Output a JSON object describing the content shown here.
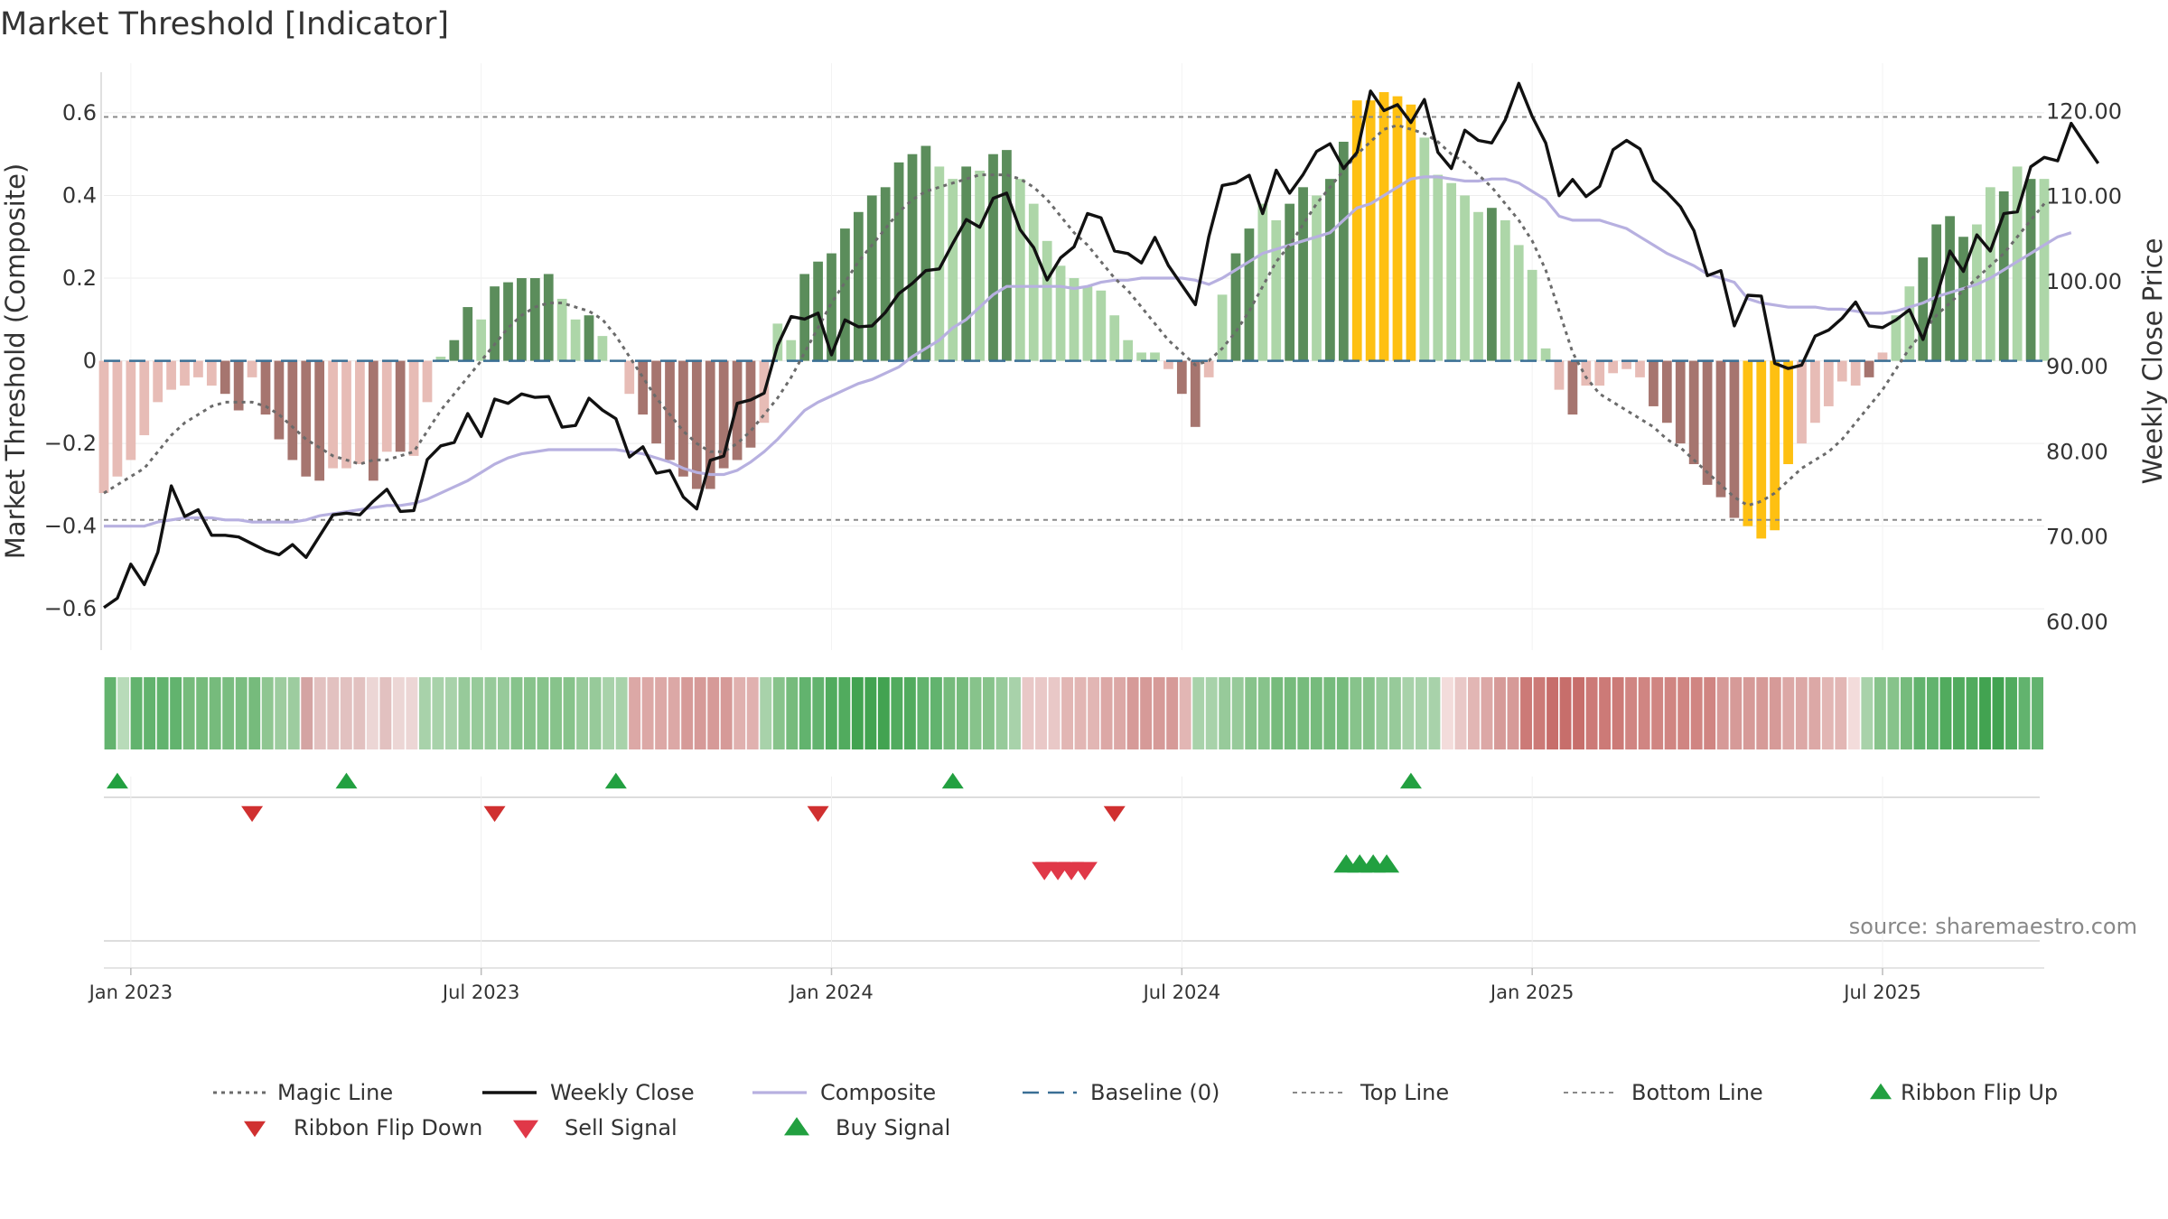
{
  "chart_data": {
    "type": "bar",
    "title": "Market Threshold [Indicator]",
    "source_text": "source: sharemaestro.com",
    "y_left": {
      "label": "Market Threshold (Composite)",
      "range": [
        -0.7,
        0.72
      ],
      "ticks": [
        0.6,
        0.4,
        0.2,
        0,
        -0.2,
        -0.4,
        -0.6
      ],
      "tick_labels": [
        "0.6",
        "0.4",
        "0.2",
        "0",
        "−0.2",
        "−0.4",
        "−0.6"
      ]
    },
    "y_right": {
      "label": "Weekly Close Price",
      "range": [
        56.7,
        125.67
      ],
      "ticks": [
        60,
        70,
        80,
        90,
        100,
        110,
        120
      ],
      "tick_labels": [
        "60.00",
        "70.00",
        "80.00",
        "90.00",
        "100.00",
        "110.00",
        "120.00"
      ]
    },
    "x_ticks": [
      {
        "week": 2,
        "label": "Jan 2023"
      },
      {
        "week": 28,
        "label": "Jul 2023"
      },
      {
        "week": 54,
        "label": "Jan 2024"
      },
      {
        "week": 80,
        "label": "Jul 2024"
      },
      {
        "week": 106,
        "label": "Jan 2025"
      },
      {
        "week": 132,
        "label": "Jul 2025"
      }
    ],
    "top_line": 0.59,
    "bottom_line": -0.385,
    "baseline": 0,
    "composite_bars": [
      -0.32,
      -0.28,
      -0.24,
      -0.18,
      -0.1,
      -0.07,
      -0.06,
      -0.04,
      -0.06,
      -0.08,
      -0.12,
      -0.04,
      -0.13,
      -0.19,
      -0.24,
      -0.28,
      -0.29,
      -0.26,
      -0.26,
      -0.25,
      -0.29,
      -0.22,
      -0.22,
      -0.23,
      -0.1,
      0.01,
      0.05,
      0.13,
      0.1,
      0.18,
      0.19,
      0.2,
      0.2,
      0.21,
      0.15,
      0.1,
      0.11,
      0.06,
      0,
      -0.08,
      -0.13,
      -0.2,
      -0.24,
      -0.28,
      -0.31,
      -0.31,
      -0.26,
      -0.24,
      -0.21,
      -0.15,
      0.09,
      0.05,
      0.21,
      0.24,
      0.26,
      0.32,
      0.36,
      0.4,
      0.42,
      0.48,
      0.5,
      0.52,
      0.47,
      0.44,
      0.47,
      0.46,
      0.5,
      0.51,
      0.44,
      0.38,
      0.29,
      0.23,
      0.2,
      0.18,
      0.17,
      0.11,
      0.05,
      0.02,
      0.02,
      -0.02,
      -0.08,
      -0.16,
      -0.04,
      0.16,
      0.26,
      0.32,
      0.38,
      0.34,
      0.38,
      0.42,
      0.4,
      0.44,
      0.53,
      0.63,
      0.63,
      0.65,
      0.64,
      0.62,
      0.54,
      0.45,
      0.43,
      0.4,
      0.36,
      0.37,
      0.34,
      0.28,
      0.22,
      0.03,
      -0.07,
      -0.13,
      -0.06,
      -0.06,
      -0.03,
      -0.02,
      -0.04,
      -0.11,
      -0.15,
      -0.2,
      -0.25,
      -0.3,
      -0.33,
      -0.38,
      -0.4,
      -0.43,
      -0.41,
      -0.25,
      -0.2,
      -0.15,
      -0.11,
      -0.05,
      -0.06,
      -0.04,
      0.02,
      0.11,
      0.18,
      0.25,
      0.33,
      0.35,
      0.3,
      0.33,
      0.42,
      0.41,
      0.47,
      0.44,
      0.44
    ],
    "bar_categories": [
      "s-pale",
      "s-pale",
      "s-pale",
      "s-pale",
      "s-pale",
      "s-pale",
      "s-pale",
      "s-pale",
      "s-pale",
      "s-dark",
      "s-dark",
      "s-pale",
      "s-dark",
      "s-dark",
      "s-dark",
      "s-dark",
      "s-dark",
      "s-pale",
      "s-pale",
      "s-pale",
      "s-dark",
      "s-pale",
      "s-dark",
      "s-pale",
      "s-pale",
      "l-pale",
      "l-dark",
      "l-dark",
      "l-pale",
      "l-dark",
      "l-dark",
      "l-dark",
      "l-dark",
      "l-dark",
      "l-pale",
      "l-pale",
      "l-dark",
      "l-pale",
      "s-pale",
      "s-pale",
      "s-dark",
      "s-dark",
      "s-dark",
      "s-dark",
      "s-dark",
      "s-dark",
      "s-dark",
      "s-dark",
      "s-dark",
      "s-pale",
      "l-pale",
      "l-pale",
      "l-dark",
      "l-dark",
      "l-dark",
      "l-dark",
      "l-dark",
      "l-dark",
      "l-dark",
      "l-dark",
      "l-dark",
      "l-dark",
      "l-pale",
      "l-pale",
      "l-dark",
      "l-pale",
      "l-dark",
      "l-dark",
      "l-pale",
      "l-pale",
      "l-pale",
      "l-pale",
      "l-pale",
      "l-pale",
      "l-pale",
      "l-pale",
      "l-pale",
      "l-pale",
      "l-pale",
      "s-pale",
      "s-dark",
      "s-dark",
      "s-pale",
      "l-pale",
      "l-dark",
      "l-dark",
      "l-pale",
      "l-pale",
      "l-dark",
      "l-dark",
      "l-pale",
      "l-dark",
      "l-dark",
      "extreme",
      "extreme",
      "extreme",
      "extreme",
      "extreme",
      "l-pale",
      "l-pale",
      "l-pale",
      "l-pale",
      "l-pale",
      "l-dark",
      "l-pale",
      "l-pale",
      "l-pale",
      "l-pale",
      "s-pale",
      "s-dark",
      "s-pale",
      "s-pale",
      "s-pale",
      "s-pale",
      "s-pale",
      "s-dark",
      "s-dark",
      "s-dark",
      "s-dark",
      "s-dark",
      "s-dark",
      "s-dark",
      "extreme",
      "extreme",
      "extreme",
      "extreme",
      "s-pale",
      "s-pale",
      "s-pale",
      "s-pale",
      "s-pale",
      "s-dark",
      "s-pale",
      "l-pale",
      "l-pale",
      "l-dark",
      "l-dark",
      "l-dark",
      "l-dark",
      "l-pale",
      "l-pale",
      "l-dark",
      "l-pale",
      "l-dark",
      "l-pale",
      "l-pale"
    ],
    "magic_line": [
      -0.32,
      -0.3,
      -0.28,
      -0.26,
      -0.22,
      -0.18,
      -0.15,
      -0.13,
      -0.11,
      -0.1,
      -0.1,
      -0.1,
      -0.11,
      -0.13,
      -0.16,
      -0.19,
      -0.21,
      -0.23,
      -0.24,
      -0.25,
      -0.24,
      -0.24,
      -0.23,
      -0.22,
      -0.17,
      -0.12,
      -0.08,
      -0.04,
      0,
      0.04,
      0.08,
      0.11,
      0.13,
      0.14,
      0.14,
      0.13,
      0.12,
      0.1,
      0.06,
      0.01,
      -0.04,
      -0.09,
      -0.13,
      -0.17,
      -0.2,
      -0.22,
      -0.22,
      -0.2,
      -0.17,
      -0.13,
      -0.09,
      -0.04,
      0.02,
      0.08,
      0.14,
      0.19,
      0.24,
      0.28,
      0.32,
      0.36,
      0.39,
      0.41,
      0.42,
      0.43,
      0.44,
      0.45,
      0.45,
      0.45,
      0.44,
      0.42,
      0.39,
      0.35,
      0.31,
      0.28,
      0.24,
      0.2,
      0.17,
      0.13,
      0.09,
      0.05,
      0.02,
      -0.01,
      0,
      0.03,
      0.07,
      0.12,
      0.18,
      0.24,
      0.28,
      0.33,
      0.38,
      0.42,
      0.46,
      0.5,
      0.53,
      0.56,
      0.57,
      0.56,
      0.55,
      0.53,
      0.5,
      0.48,
      0.45,
      0.42,
      0.38,
      0.34,
      0.29,
      0.22,
      0.12,
      0.02,
      -0.04,
      -0.08,
      -0.1,
      -0.12,
      -0.14,
      -0.16,
      -0.19,
      -0.21,
      -0.24,
      -0.27,
      -0.3,
      -0.33,
      -0.35,
      -0.34,
      -0.32,
      -0.29,
      -0.26,
      -0.24,
      -0.22,
      -0.19,
      -0.15,
      -0.11,
      -0.07,
      -0.02,
      0.03,
      0.07,
      0.11,
      0.14,
      0.17,
      0.2,
      0.23,
      0.26,
      0.3,
      0.34,
      0.38
    ],
    "weekly_close": [
      61.7,
      62.8,
      66.8,
      64.4,
      68.2,
      76.0,
      72.4,
      73.2,
      70.2,
      70.2,
      70.0,
      69.2,
      68.4,
      67.9,
      69.1,
      67.6,
      70.1,
      72.6,
      72.8,
      72.6,
      74.2,
      75.6,
      73.0,
      73.1,
      79.1,
      80.7,
      81.1,
      84.5,
      81.8,
      86.2,
      85.7,
      86.8,
      86.4,
      86.5,
      82.9,
      83.1,
      86.3,
      84.9,
      83.9,
      79.4,
      80.6,
      77.5,
      77.8,
      74.7,
      73.3,
      79.0,
      79.5,
      85.7,
      86.1,
      86.9,
      92.5,
      95.9,
      95.6,
      96.3,
      91.4,
      95.5,
      94.7,
      94.8,
      96.4,
      98.6,
      99.8,
      101.3,
      101.5,
      104.5,
      107.3,
      106.4,
      109.8,
      110.4,
      106.1,
      104.0,
      100.2,
      102.8,
      104.1,
      108.0,
      107.5,
      103.6,
      103.3,
      102.2,
      105.2,
      101.9,
      99.6,
      97.3,
      105.3,
      111.3,
      111.6,
      112.5,
      108.0,
      113.1,
      110.4,
      112.6,
      115.3,
      116.2,
      113.3,
      115.2,
      122.4,
      120.1,
      120.8,
      118.7,
      121.4,
      115.2,
      113.3,
      117.8,
      116.6,
      116.3,
      119.0,
      123.3,
      119.4,
      116.3,
      110.1,
      112.0,
      110.0,
      111.2,
      115.5,
      116.6,
      115.6,
      111.9,
      110.5,
      108.8,
      106.0,
      100.7,
      101.3,
      94.8,
      98.4,
      98.3,
      90.4,
      89.8,
      90.2,
      93.6,
      94.3,
      95.7,
      97.6,
      94.8,
      94.6,
      95.5,
      96.7,
      93.2,
      98.2,
      103.6,
      101.2,
      105.5,
      103.6,
      108.0,
      108.2,
      113.5,
      114.6,
      114.2,
      118.6,
      116.2,
      113.9
    ],
    "composite_line": [
      -0.4,
      -0.4,
      -0.4,
      -0.4,
      -0.39,
      -0.385,
      -0.38,
      -0.38,
      -0.38,
      -0.385,
      -0.385,
      -0.39,
      -0.39,
      -0.39,
      -0.39,
      -0.385,
      -0.375,
      -0.37,
      -0.365,
      -0.36,
      -0.355,
      -0.35,
      -0.35,
      -0.345,
      -0.335,
      -0.32,
      -0.305,
      -0.29,
      -0.27,
      -0.25,
      -0.235,
      -0.225,
      -0.22,
      -0.215,
      -0.215,
      -0.215,
      -0.215,
      -0.215,
      -0.215,
      -0.22,
      -0.225,
      -0.235,
      -0.245,
      -0.26,
      -0.27,
      -0.275,
      -0.275,
      -0.265,
      -0.245,
      -0.22,
      -0.19,
      -0.155,
      -0.12,
      -0.1,
      -0.085,
      -0.07,
      -0.055,
      -0.045,
      -0.03,
      -0.015,
      0.01,
      0.03,
      0.05,
      0.08,
      0.1,
      0.13,
      0.16,
      0.18,
      0.18,
      0.18,
      0.18,
      0.18,
      0.175,
      0.18,
      0.19,
      0.195,
      0.195,
      0.2,
      0.2,
      0.2,
      0.2,
      0.195,
      0.185,
      0.2,
      0.22,
      0.24,
      0.26,
      0.27,
      0.28,
      0.29,
      0.3,
      0.31,
      0.34,
      0.37,
      0.38,
      0.4,
      0.42,
      0.44,
      0.445,
      0.445,
      0.44,
      0.435,
      0.435,
      0.44,
      0.44,
      0.43,
      0.41,
      0.39,
      0.35,
      0.34,
      0.34,
      0.34,
      0.33,
      0.32,
      0.3,
      0.28,
      0.26,
      0.245,
      0.23,
      0.21,
      0.2,
      0.19,
      0.15,
      0.14,
      0.135,
      0.13,
      0.13,
      0.13,
      0.125,
      0.125,
      0.12,
      0.115,
      0.115,
      0.12,
      0.13,
      0.14,
      0.155,
      0.165,
      0.175,
      0.185,
      0.2,
      0.22,
      0.24,
      0.26,
      0.28,
      0.3,
      0.31
    ],
    "ribbon": [
      "#63b36e",
      "#b8dbb9",
      "#62b36e",
      "#62b36e",
      "#62b36e",
      "#62b36e",
      "#76bb7c",
      "#76bb7c",
      "#76bb7c",
      "#7abd80",
      "#7abd80",
      "#76bb7c",
      "#8fc691",
      "#9dcc9f",
      "#9dcc9f",
      "#d4a4a3",
      "#e2c1c0",
      "#e2c1c0",
      "#e2c1c0",
      "#e2c1c0",
      "#ecd6d5",
      "#e2c1c0",
      "#ecd6d5",
      "#ecd6d5",
      "#a8d2aa",
      "#a8d2aa",
      "#a8d2aa",
      "#97ca9a",
      "#97ca9a",
      "#97ca9a",
      "#97ca9a",
      "#87c38b",
      "#87c38b",
      "#87c38b",
      "#87c38b",
      "#87c38b",
      "#97ca9a",
      "#97ca9a",
      "#a8d2aa",
      "#a8d2aa",
      "#dca8a6",
      "#dca8a6",
      "#dca8a6",
      "#dca8a6",
      "#d69a98",
      "#d69a98",
      "#d69a98",
      "#d69a98",
      "#e0b1af",
      "#e0b1af",
      "#a8d2aa",
      "#87c38b",
      "#76bb7c",
      "#62b36e",
      "#62b36e",
      "#51ab5e",
      "#51ab5e",
      "#42a351",
      "#42a351",
      "#42a351",
      "#51ab5e",
      "#51ab5e",
      "#62b36e",
      "#62b36e",
      "#76bb7c",
      "#76bb7c",
      "#87c38b",
      "#87c38b",
      "#97ca9a",
      "#a8d2aa",
      "#e9c8c7",
      "#e9c8c7",
      "#e9c8c7",
      "#e2b6b4",
      "#e2b6b4",
      "#e2b6b4",
      "#dca8a6",
      "#dca8a6",
      "#d69a98",
      "#d69a98",
      "#d69a98",
      "#d69a98",
      "#e2b6b4",
      "#a8d2aa",
      "#a8d2aa",
      "#97ca9a",
      "#97ca9a",
      "#87c38b",
      "#87c38b",
      "#76bb7c",
      "#76bb7c",
      "#76bb7c",
      "#76bb7c",
      "#76bb7c",
      "#76bb7c",
      "#87c38b",
      "#87c38b",
      "#97ca9a",
      "#97ca9a",
      "#a8d2aa",
      "#a8d2aa",
      "#a8d2aa",
      "#f3dcdb",
      "#e9c8c7",
      "#e2b6b4",
      "#dca8a6",
      "#d69a98",
      "#d69a98",
      "#cc7a77",
      "#cc7a77",
      "#c76e6b",
      "#c76e6b",
      "#c76e6b",
      "#cc7a77",
      "#cc7a77",
      "#cc7a77",
      "#d08582",
      "#d08582",
      "#d08582",
      "#d08582",
      "#d08582",
      "#d08582",
      "#d08582",
      "#d69a98",
      "#d69a98",
      "#d69a98",
      "#d69a98",
      "#d69a98",
      "#dca8a6",
      "#dca8a6",
      "#dca8a6",
      "#e2b6b4",
      "#e2b6b4",
      "#f3dcdb",
      "#a8d2aa",
      "#87c38b",
      "#87c38b",
      "#76bb7c",
      "#62b36e",
      "#62b36e",
      "#51ab5e",
      "#51ab5e",
      "#51ab5e",
      "#42a351",
      "#42a351",
      "#51ab5e",
      "#62b36e",
      "#62b36e"
    ],
    "markers": {
      "ribbon_flip_up": [
        1,
        18,
        38,
        63,
        97
      ],
      "ribbon_flip_down": [
        11,
        29,
        53,
        75
      ],
      "sell_signal": [
        69.8,
        70.8,
        71.8,
        72.8
      ],
      "buy_signal": [
        92.2,
        93.2,
        94.2,
        95.2
      ]
    },
    "legend": [
      {
        "key": "magic_line",
        "label": "Magic Line"
      },
      {
        "key": "weekly_close",
        "label": "Weekly Close"
      },
      {
        "key": "composite",
        "label": "Composite"
      },
      {
        "key": "baseline",
        "label": "Baseline (0)"
      },
      {
        "key": "top_line",
        "label": "Top Line"
      },
      {
        "key": "bottom_line",
        "label": "Bottom Line"
      },
      {
        "key": "ribbon_flip_up",
        "label": "Ribbon Flip Up"
      },
      {
        "key": "ribbon_flip_down",
        "label": "Ribbon Flip Down"
      },
      {
        "key": "sell_signal",
        "label": "Sell Signal"
      },
      {
        "key": "buy_signal",
        "label": "Buy Signal"
      }
    ],
    "colors": {
      "long_dark": "#5b8d5b",
      "long_pale": "#add6a8",
      "short_dark": "#a6756f",
      "short_pale": "#e7bcb6",
      "extreme": "#fec012",
      "magic_line": "#6b6b6b",
      "weekly_close": "#111111",
      "composite": "#b7b0e0",
      "baseline": "#3a6f95",
      "threshold": "#8a8a8a",
      "flip_up": "#22a040",
      "flip_down": "#d03030",
      "sell": "#e03848",
      "buy": "#22a040"
    }
  }
}
